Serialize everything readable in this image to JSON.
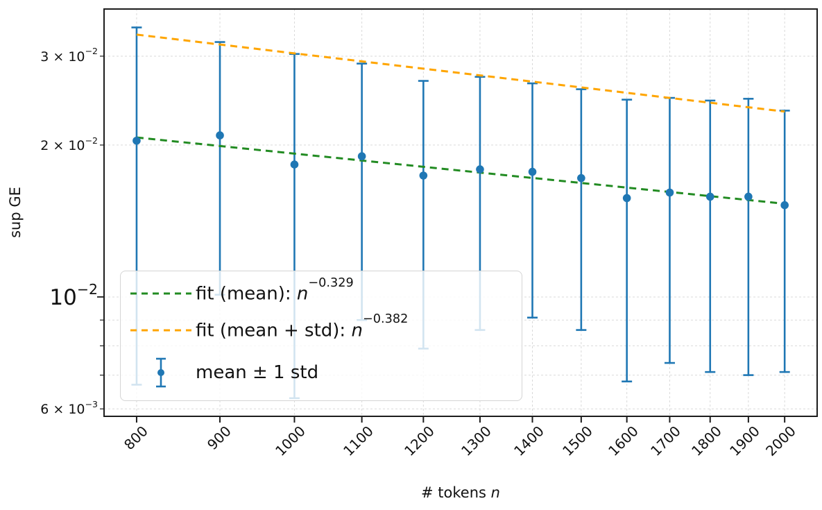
{
  "chart_data": {
    "type": "scatter",
    "title": "",
    "xlabel": {
      "prefix": "# tokens ",
      "var": "n"
    },
    "ylabel": "sup GE",
    "x_scale": "log",
    "y_scale": "log",
    "xlim": [
      764,
      2094
    ],
    "ylim": [
      0.0058,
      0.0372
    ],
    "grid": true,
    "legend_position": "lower left",
    "x": [
      800,
      900,
      1000,
      1100,
      1200,
      1300,
      1400,
      1500,
      1600,
      1700,
      1800,
      1900,
      2000
    ],
    "x_tick_labels": [
      "800",
      "900",
      "1000",
      "1100",
      "1200",
      "1300",
      "1400",
      "1500",
      "1600",
      "1700",
      "1800",
      "1900",
      "2000"
    ],
    "series": [
      {
        "name": "mean ± 1 std",
        "type": "errorbar",
        "mean": [
          0.0204,
          0.0209,
          0.0183,
          0.019,
          0.0174,
          0.0179,
          0.0177,
          0.0172,
          0.0157,
          0.0161,
          0.0158,
          0.0158,
          0.0152
        ],
        "upper": [
          0.0342,
          0.032,
          0.0303,
          0.029,
          0.0268,
          0.0273,
          0.0265,
          0.0258,
          0.0246,
          0.0248,
          0.0245,
          0.0247,
          0.0234
        ],
        "lower": [
          0.0067,
          0.0101,
          0.0063,
          0.009,
          0.0079,
          0.0086,
          0.0091,
          0.0086,
          0.0068,
          0.0074,
          0.0071,
          0.007,
          0.0071
        ]
      }
    ],
    "fits": [
      {
        "label_prefix": "fit (mean): ",
        "var": "n",
        "exp": "−0.329",
        "color": "#228b22",
        "x0": 800,
        "y0": 0.0207,
        "x1": 2000,
        "y1": 0.0153
      },
      {
        "label_prefix": "fit (mean + std): ",
        "var": "n",
        "exp": "−0.382",
        "color": "#ffa500",
        "x0": 800,
        "y0": 0.0331,
        "x1": 2000,
        "y1": 0.0233
      }
    ],
    "legend": {
      "errorbar_label": "mean ± 1 std"
    },
    "y_grid": [
      0.006,
      0.007,
      0.008,
      0.009,
      0.01,
      0.02,
      0.03
    ],
    "y_tick_labels": [
      {
        "coeff": "3 × 10",
        "exp": "−2",
        "value": 0.03,
        "major": false
      },
      {
        "coeff": "2 × 10",
        "exp": "−2",
        "value": 0.02,
        "major": false
      },
      {
        "coeff": "10",
        "exp": "−2",
        "value": 0.01,
        "major": true
      },
      {
        "coeff": "6 × 10",
        "exp": "−3",
        "value": 0.006,
        "major": false
      }
    ],
    "y_minor_ticks_unlabeled": [
      0.007,
      0.008,
      0.009
    ],
    "colors": {
      "point": "#1f77b4",
      "grid": "#d9d9d9",
      "spine": "#1c1c1c"
    }
  }
}
